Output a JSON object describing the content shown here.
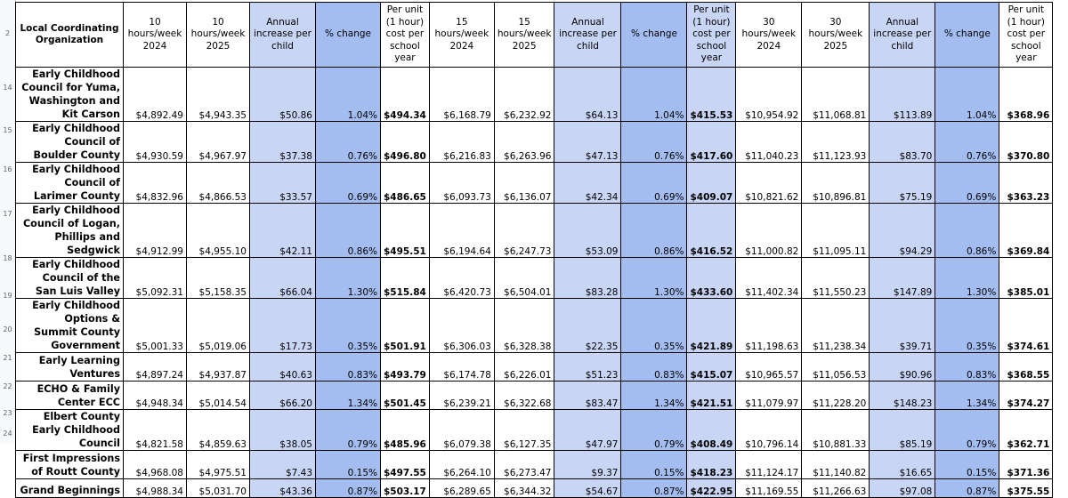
{
  "row_numbers": [
    "2",
    "14",
    "15",
    "16",
    "17",
    "18",
    "19",
    "20",
    "21",
    "22",
    "23",
    "24"
  ],
  "headers": [
    "Local Coordinating Organization",
    "10 hours/week 2024",
    "10 hours/week 2025",
    "Annual increase per child",
    "% change",
    "Per unit (1 hour) cost per school year",
    "15 hours/week 2024",
    "15 hours/week 2025",
    "Annual increase per child",
    "% change",
    "Per unit (1 hour) cost per school year",
    "30 hours/week 2024",
    "30 hours/week 2025",
    "Annual increase per child",
    "% change",
    "Per unit (1 hour) cost per school year"
  ],
  "rows": [
    {
      "org": "Early Childhood Council for Yuma, Washington and Kit Carson",
      "v": [
        "$4,892.49",
        "$4,943.35",
        "$50.86",
        "1.04%",
        "$494.34",
        "$6,168.79",
        "$6,232.92",
        "$64.13",
        "1.04%",
        "$415.53",
        "$10,954.92",
        "$11,068.81",
        "$113.89",
        "1.04%",
        "$368.96"
      ]
    },
    {
      "org": "Early Childhood Council of Boulder County",
      "v": [
        "$4,930.59",
        "$4,967.97",
        "$37.38",
        "0.76%",
        "$496.80",
        "$6,216.83",
        "$6,263.96",
        "$47.13",
        "0.76%",
        "$417.60",
        "$11,040.23",
        "$11,123.93",
        "$83.70",
        "0.76%",
        "$370.80"
      ]
    },
    {
      "org": "Early Childhood Council of Larimer County",
      "v": [
        "$4,832.96",
        "$4,866.53",
        "$33.57",
        "0.69%",
        "$486.65",
        "$6,093.73",
        "$6,136.07",
        "$42.34",
        "0.69%",
        "$409.07",
        "$10,821.62",
        "$10,896.81",
        "$75.19",
        "0.69%",
        "$363.23"
      ]
    },
    {
      "org": "Early Childhood Council of Logan, Phillips and Sedgwick",
      "v": [
        "$4,912.99",
        "$4,955.10",
        "$42.11",
        "0.86%",
        "$495.51",
        "$6,194.64",
        "$6,247.73",
        "$53.09",
        "0.86%",
        "$416.52",
        "$11,000.82",
        "$11,095.11",
        "$94.29",
        "0.86%",
        "$369.84"
      ]
    },
    {
      "org": "Early Childhood Council of the San Luis Valley",
      "v": [
        "$5,092.31",
        "$5,158.35",
        "$66.04",
        "1.30%",
        "$515.84",
        "$6,420.73",
        "$6,504.01",
        "$83.28",
        "1.30%",
        "$433.60",
        "$11,402.34",
        "$11,550.23",
        "$147.89",
        "1.30%",
        "$385.01"
      ]
    },
    {
      "org": "Early Childhood Options & Summit County Government",
      "v": [
        "$5,001.33",
        "$5,019.06",
        "$17.73",
        "0.35%",
        "$501.91",
        "$6,306.03",
        "$6,328.38",
        "$22.35",
        "0.35%",
        "$421.89",
        "$11,198.63",
        "$11,238.34",
        "$39.71",
        "0.35%",
        "$374.61"
      ]
    },
    {
      "org": "Early Learning Ventures",
      "v": [
        "$4,897.24",
        "$4,937.87",
        "$40.63",
        "0.83%",
        "$493.79",
        "$6,174.78",
        "$6,226.01",
        "$51.23",
        "0.83%",
        "$415.07",
        "$10,965.57",
        "$11,056.53",
        "$90.96",
        "0.83%",
        "$368.55"
      ]
    },
    {
      "org": "ECHO & Family Center ECC",
      "v": [
        "$4,948.34",
        "$5,014.54",
        "$66.20",
        "1.34%",
        "$501.45",
        "$6,239.21",
        "$6,322.68",
        "$83.47",
        "1.34%",
        "$421.51",
        "$11,079.97",
        "$11,228.20",
        "$148.23",
        "1.34%",
        "$374.27"
      ]
    },
    {
      "org": "Elbert County Early Childhood Council",
      "v": [
        "$4,821.58",
        "$4,859.63",
        "$38.05",
        "0.79%",
        "$485.96",
        "$6,079.38",
        "$6,127.35",
        "$47.97",
        "0.79%",
        "$408.49",
        "$10,796.14",
        "$10,881.33",
        "$85.19",
        "0.79%",
        "$362.71"
      ]
    },
    {
      "org": "First Impressions of Routt County",
      "v": [
        "$4,968.08",
        "$4,975.51",
        "$7.43",
        "0.15%",
        "$497.55",
        "$6,264.10",
        "$6,273.47",
        "$9.37",
        "0.15%",
        "$418.23",
        "$11,124.17",
        "$11,140.82",
        "$16.65",
        "0.15%",
        "$371.36"
      ]
    },
    {
      "org": "Grand Beginnings",
      "v": [
        "$4,988.34",
        "$5,031.70",
        "$43.36",
        "0.87%",
        "$503.17",
        "$6,289.65",
        "$6,344.32",
        "$54.67",
        "0.87%",
        "$422.95",
        "$11,169.55",
        "$11,266.63",
        "$97.08",
        "0.87%",
        "$375.55"
      ]
    }
  ]
}
